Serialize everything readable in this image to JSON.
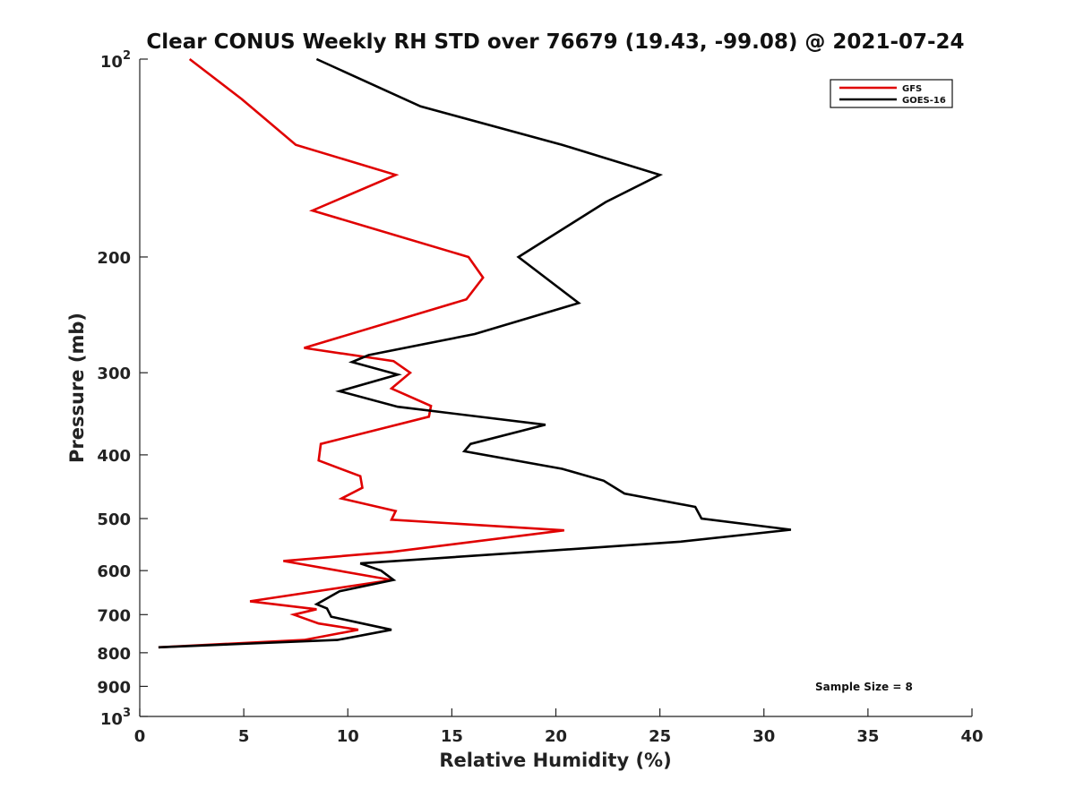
{
  "chart_data": {
    "type": "line",
    "title": "Clear CONUS Weekly RH STD over 76679 (19.43, -99.08) @ 2021-07-24",
    "xlabel": "Relative Humidity (%)",
    "ylabel": "Pressure (mb)",
    "xlim": [
      0,
      40
    ],
    "ylim": [
      100,
      1000
    ],
    "y_scale": "log",
    "y_inverted": true,
    "grid": false,
    "legend_position": "top-right",
    "xticks": [
      "0",
      "5",
      "10",
      "15",
      "20",
      "25",
      "30",
      "35",
      "40"
    ],
    "yticks": [
      {
        "value": 100,
        "base": "10",
        "exp": "2"
      },
      {
        "value": 200,
        "label": "200"
      },
      {
        "value": 300,
        "label": "300"
      },
      {
        "value": 400,
        "label": "400"
      },
      {
        "value": 500,
        "label": "500"
      },
      {
        "value": 600,
        "label": "600"
      },
      {
        "value": 700,
        "label": "700"
      },
      {
        "value": 800,
        "label": "800"
      },
      {
        "value": 900,
        "label": "900"
      },
      {
        "value": 1000,
        "base": "10",
        "exp": "3"
      }
    ],
    "series": [
      {
        "name": "GFS",
        "color": "#e00000",
        "points": [
          [
            2.4,
            100
          ],
          [
            4.9,
            115
          ],
          [
            7.5,
            135
          ],
          [
            12.3,
            150
          ],
          [
            8.3,
            170
          ],
          [
            15.8,
            200
          ],
          [
            16.5,
            215
          ],
          [
            15.7,
            232
          ],
          [
            7.9,
            275
          ],
          [
            12.2,
            288
          ],
          [
            13.0,
            300
          ],
          [
            12.1,
            317
          ],
          [
            14.0,
            337
          ],
          [
            13.9,
            350
          ],
          [
            8.7,
            385
          ],
          [
            8.6,
            408
          ],
          [
            10.6,
            431
          ],
          [
            10.7,
            449
          ],
          [
            9.7,
            466
          ],
          [
            12.3,
            487
          ],
          [
            12.1,
            502
          ],
          [
            20.4,
            521
          ],
          [
            12.1,
            562
          ],
          [
            6.9,
            580
          ],
          [
            12.1,
            620
          ],
          [
            5.3,
            668
          ],
          [
            8.5,
            687
          ],
          [
            7.4,
            700
          ],
          [
            8.6,
            722
          ],
          [
            10.5,
            738
          ],
          [
            7.9,
            765
          ],
          [
            0.9,
            785
          ]
        ]
      },
      {
        "name": "GOES-16",
        "color": "#000000",
        "points": [
          [
            8.5,
            100
          ],
          [
            13.5,
            118
          ],
          [
            20.3,
            135
          ],
          [
            25.0,
            150
          ],
          [
            22.4,
            165
          ],
          [
            18.2,
            200
          ],
          [
            21.1,
            235
          ],
          [
            16.1,
            262
          ],
          [
            11.0,
            282
          ],
          [
            10.2,
            289
          ],
          [
            12.4,
            302
          ],
          [
            9.6,
            320
          ],
          [
            12.4,
            338
          ],
          [
            19.5,
            360
          ],
          [
            15.9,
            385
          ],
          [
            15.6,
            395
          ],
          [
            20.3,
            420
          ],
          [
            22.3,
            438
          ],
          [
            23.3,
            458
          ],
          [
            26.7,
            480
          ],
          [
            27.0,
            500
          ],
          [
            31.3,
            520
          ],
          [
            26.0,
            542
          ],
          [
            19.5,
            560
          ],
          [
            10.6,
            585
          ],
          [
            11.6,
            600
          ],
          [
            12.2,
            620
          ],
          [
            9.6,
            645
          ],
          [
            8.5,
            675
          ],
          [
            9.0,
            685
          ],
          [
            9.2,
            705
          ],
          [
            10.7,
            722
          ],
          [
            12.1,
            738
          ],
          [
            9.5,
            765
          ],
          [
            0.9,
            785
          ]
        ]
      }
    ],
    "annotations": [
      {
        "text": "Sample Size = 8",
        "position": "bottom-right"
      }
    ]
  }
}
